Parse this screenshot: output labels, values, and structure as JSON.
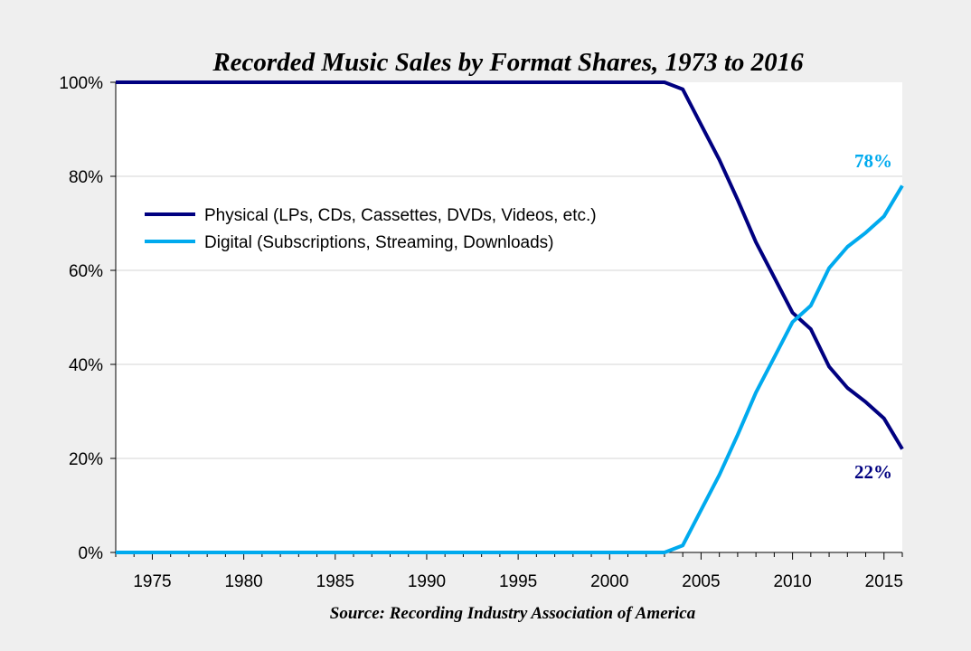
{
  "chart_data": {
    "type": "line",
    "title": "Recorded Music Sales by Format Shares, 1973 to 2016",
    "source": "Source: Recording Industry Association of America",
    "xlabel": "",
    "ylabel": "",
    "xlim": [
      1973,
      2016
    ],
    "ylim": [
      0,
      100
    ],
    "x_ticks": [
      1975,
      1980,
      1985,
      1990,
      1995,
      2000,
      2005,
      2010,
      2015
    ],
    "x_tick_labels": [
      "1975",
      "1980",
      "1985",
      "1990",
      "1995",
      "2000",
      "2005",
      "2010",
      "2015"
    ],
    "y_ticks": [
      0,
      20,
      40,
      60,
      80,
      100
    ],
    "y_tick_labels": [
      "0%",
      "20%",
      "40%",
      "60%",
      "80%",
      "100%"
    ],
    "grid": "horizontal",
    "legend_position": "upper-left",
    "series": [
      {
        "name": "Physical (LPs, CDs, Cassettes, DVDs, Videos, etc.)",
        "color": "#000080",
        "x": [
          1973,
          2003,
          2004,
          2005,
          2006,
          2007,
          2008,
          2009,
          2010,
          2011,
          2012,
          2013,
          2014,
          2015,
          2016
        ],
        "values": [
          100,
          100,
          98.5,
          91,
          83.5,
          75,
          66,
          58.5,
          51,
          47.5,
          39.5,
          35,
          32,
          28.5,
          22
        ],
        "end_label": "22%"
      },
      {
        "name": "Digital (Subscriptions, Streaming, Downloads)",
        "color": "#00aaee",
        "x": [
          1973,
          2003,
          2004,
          2005,
          2006,
          2007,
          2008,
          2009,
          2010,
          2011,
          2012,
          2013,
          2014,
          2015,
          2016
        ],
        "values": [
          0,
          0,
          1.5,
          9,
          16.5,
          25,
          34,
          41.5,
          49,
          52.5,
          60.5,
          65,
          68,
          71.5,
          78
        ],
        "end_label": "78%"
      }
    ]
  }
}
